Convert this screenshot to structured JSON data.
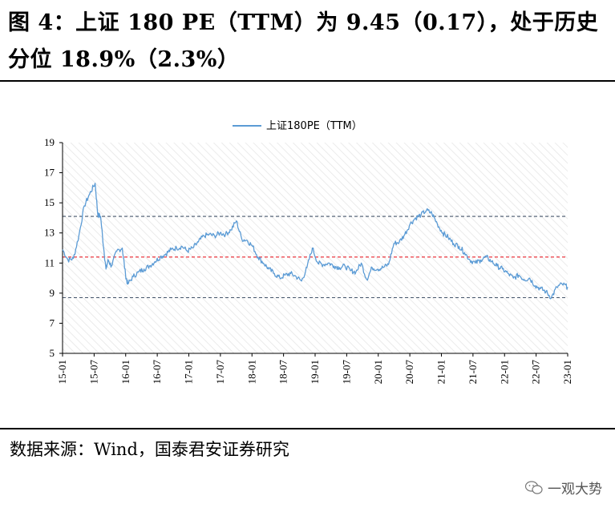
{
  "title": "图 4：上证 180 PE（TTM）为 9.45（0.17），处于历史分位 18.9%（2.3%）",
  "source": "数据来源：Wind，国泰君安证券研究",
  "watermark": "一观大势",
  "icons": {
    "watermark": "wechat-icon"
  },
  "colors": {
    "series": "#5b9bd5",
    "mean": "#e8202a",
    "band": "#44546a",
    "hatch": "#e6e6e6"
  },
  "chart_data": {
    "type": "line",
    "legend": "上证180PE（TTM）",
    "legend_position": "top-center",
    "grid": false,
    "ylim": [
      5,
      19
    ],
    "yticks": [
      5,
      7,
      9,
      11,
      13,
      15,
      17,
      19
    ],
    "xticks": [
      "15-01",
      "15-07",
      "16-01",
      "16-07",
      "17-01",
      "17-07",
      "18-01",
      "18-07",
      "19-01",
      "19-07",
      "20-01",
      "20-07",
      "21-01",
      "21-07",
      "22-01",
      "22-07",
      "23-01"
    ],
    "reference_lines": [
      {
        "name": "mean",
        "value": 11.4,
        "style": "dashed",
        "color": "#e8202a"
      },
      {
        "name": "+1sd",
        "value": 14.1,
        "style": "dashed",
        "color": "#44546a"
      },
      {
        "name": "-1sd",
        "value": 8.7,
        "style": "dashed",
        "color": "#44546a"
      }
    ],
    "series": [
      {
        "values": [
          [
            0,
            11.9
          ],
          [
            1,
            11.2
          ],
          [
            2,
            11.3
          ],
          [
            3,
            12.8
          ],
          [
            4,
            14.8
          ],
          [
            5,
            15.6
          ],
          [
            6,
            16.3
          ],
          [
            6.5,
            14.2
          ],
          [
            7,
            14.1
          ],
          [
            7.6,
            11.9
          ],
          [
            8,
            10.6
          ],
          [
            8.4,
            11.2
          ],
          [
            9,
            10.8
          ],
          [
            10,
            11.8
          ],
          [
            11,
            12.0
          ],
          [
            11.6,
            10.2
          ],
          [
            12,
            9.6
          ],
          [
            13,
            10.1
          ],
          [
            14,
            10.4
          ],
          [
            15,
            10.6
          ],
          [
            16,
            10.8
          ],
          [
            17,
            11.1
          ],
          [
            18,
            11.4
          ],
          [
            19,
            11.6
          ],
          [
            20,
            11.9
          ],
          [
            21,
            12.0
          ],
          [
            22,
            12.1
          ],
          [
            23,
            11.8
          ],
          [
            24,
            12.0
          ],
          [
            25,
            12.4
          ],
          [
            26,
            12.8
          ],
          [
            27,
            12.9
          ],
          [
            28,
            12.8
          ],
          [
            29,
            13.0
          ],
          [
            30,
            12.9
          ],
          [
            31,
            13.2
          ],
          [
            32,
            13.8
          ],
          [
            33,
            12.6
          ],
          [
            34,
            12.5
          ],
          [
            35,
            12.1
          ],
          [
            36,
            11.4
          ],
          [
            37,
            11.0
          ],
          [
            38,
            10.6
          ],
          [
            39,
            10.3
          ],
          [
            40,
            10.0
          ],
          [
            41,
            10.2
          ],
          [
            42,
            10.3
          ],
          [
            43,
            10.1
          ],
          [
            44,
            9.8
          ],
          [
            45,
            10.7
          ],
          [
            46,
            12.0
          ],
          [
            47,
            11.0
          ],
          [
            48,
            10.9
          ],
          [
            49,
            11.0
          ],
          [
            50,
            10.8
          ],
          [
            51,
            10.7
          ],
          [
            52,
            10.8
          ],
          [
            53,
            10.5
          ],
          [
            54,
            10.4
          ],
          [
            55,
            11.0
          ],
          [
            56,
            9.9
          ],
          [
            57,
            10.7
          ],
          [
            58,
            10.6
          ],
          [
            59,
            10.7
          ],
          [
            60,
            10.9
          ],
          [
            61,
            12.3
          ],
          [
            62,
            12.4
          ],
          [
            63,
            12.9
          ],
          [
            64,
            13.6
          ],
          [
            65,
            14.0
          ],
          [
            66,
            14.2
          ],
          [
            67,
            14.5
          ],
          [
            68,
            14.3
          ],
          [
            69,
            13.6
          ],
          [
            70,
            13.0
          ],
          [
            71,
            12.7
          ],
          [
            72,
            12.3
          ],
          [
            73,
            12.1
          ],
          [
            74,
            11.7
          ],
          [
            75,
            11.2
          ],
          [
            76,
            11.0
          ],
          [
            77,
            11.2
          ],
          [
            78,
            11.4
          ],
          [
            79,
            11.1
          ],
          [
            80,
            10.8
          ],
          [
            81,
            10.6
          ],
          [
            82,
            10.3
          ],
          [
            83,
            10.0
          ],
          [
            84,
            10.2
          ],
          [
            85,
            9.9
          ],
          [
            86,
            10.0
          ],
          [
            87,
            9.5
          ],
          [
            88,
            9.3
          ],
          [
            89,
            9.1
          ],
          [
            90,
            8.7
          ],
          [
            91,
            9.4
          ],
          [
            92,
            9.6
          ],
          [
            93,
            9.4
          ]
        ]
      }
    ]
  }
}
